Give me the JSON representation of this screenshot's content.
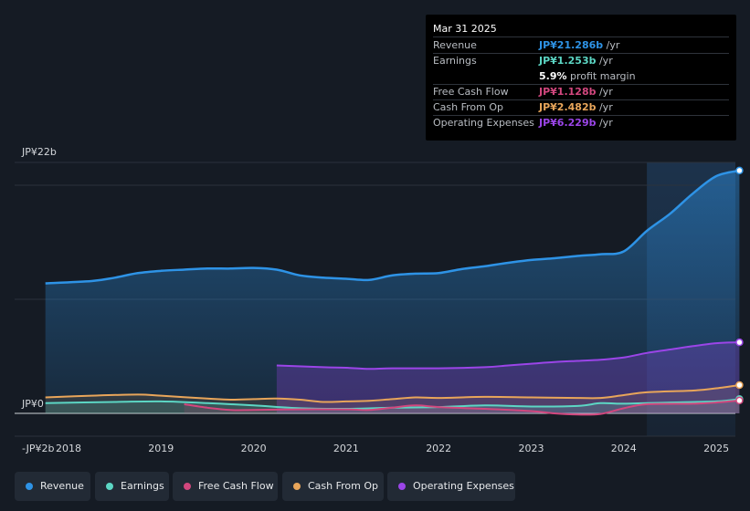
{
  "colors": {
    "revenue": "#2e93e6",
    "earnings": "#5cd6c4",
    "free_cash_flow": "#d2477e",
    "cash_from_op": "#e8a55a",
    "operating_expenses": "#9b45e8"
  },
  "tooltip": {
    "date": "Mar 31 2025",
    "rows": [
      {
        "label": "Revenue",
        "value": "JP¥21.286b",
        "unit": " /yr"
      },
      {
        "label": "Earnings",
        "value": "JP¥1.253b",
        "unit": " /yr"
      },
      {
        "label": "",
        "value": "5.9%",
        "unit": " profit margin"
      },
      {
        "label": "Free Cash Flow",
        "value": "JP¥1.128b",
        "unit": " /yr"
      },
      {
        "label": "Cash From Op",
        "value": "JP¥2.482b",
        "unit": " /yr"
      },
      {
        "label": "Operating Expenses",
        "value": "JP¥6.229b",
        "unit": " /yr"
      }
    ]
  },
  "legend": [
    {
      "label": "Revenue",
      "icon": "revenue-dot-icon"
    },
    {
      "label": "Earnings",
      "icon": "earnings-dot-icon"
    },
    {
      "label": "Free Cash Flow",
      "icon": "free-cash-flow-dot-icon"
    },
    {
      "label": "Cash From Op",
      "icon": "cash-from-op-dot-icon"
    },
    {
      "label": "Operating Expenses",
      "icon": "operating-expenses-dot-icon"
    }
  ],
  "chart_data": {
    "type": "area",
    "y_tick_labels": [
      {
        "label": "JP¥22b",
        "value": 22
      },
      {
        "label": "JP¥0",
        "value": 0
      },
      {
        "label": "-JP¥2b",
        "value": -2
      }
    ],
    "ylim": [
      -2,
      22
    ],
    "xlim": [
      2017.7,
      2025.25
    ],
    "x_ticks": [
      2018,
      2019,
      2020,
      2021,
      2022,
      2023,
      2024,
      2025
    ],
    "x_tick_labels": [
      "2018",
      "2019",
      "2020",
      "2021",
      "2022",
      "2023",
      "2024",
      "2025"
    ],
    "highlight_start": 2024.25,
    "series": [
      {
        "name": "Revenue",
        "color_key": "revenue",
        "points": [
          [
            2017.75,
            11.4
          ],
          [
            2018.25,
            11.6
          ],
          [
            2018.5,
            11.9
          ],
          [
            2018.75,
            12.3
          ],
          [
            2019.0,
            12.5
          ],
          [
            2019.25,
            12.6
          ],
          [
            2019.5,
            12.7
          ],
          [
            2019.75,
            12.7
          ],
          [
            2020.0,
            12.75
          ],
          [
            2020.25,
            12.6
          ],
          [
            2020.5,
            12.1
          ],
          [
            2020.75,
            11.9
          ],
          [
            2021.0,
            11.8
          ],
          [
            2021.25,
            11.7
          ],
          [
            2021.5,
            12.1
          ],
          [
            2021.75,
            12.25
          ],
          [
            2022.0,
            12.3
          ],
          [
            2022.25,
            12.65
          ],
          [
            2022.5,
            12.9
          ],
          [
            2022.75,
            13.2
          ],
          [
            2023.0,
            13.45
          ],
          [
            2023.25,
            13.6
          ],
          [
            2023.5,
            13.8
          ],
          [
            2023.75,
            13.95
          ],
          [
            2024.0,
            14.2
          ],
          [
            2024.25,
            16.0
          ],
          [
            2024.5,
            17.5
          ],
          [
            2024.75,
            19.3
          ],
          [
            2025.0,
            20.8
          ],
          [
            2025.25,
            21.286
          ]
        ]
      },
      {
        "name": "Earnings",
        "color_key": "earnings",
        "points": [
          [
            2017.75,
            0.9
          ],
          [
            2018.5,
            1.0
          ],
          [
            2019.0,
            1.05
          ],
          [
            2019.5,
            0.9
          ],
          [
            2020.0,
            0.7
          ],
          [
            2020.5,
            0.45
          ],
          [
            2021.0,
            0.4
          ],
          [
            2021.5,
            0.5
          ],
          [
            2022.0,
            0.55
          ],
          [
            2022.5,
            0.7
          ],
          [
            2023.0,
            0.6
          ],
          [
            2023.5,
            0.65
          ],
          [
            2023.75,
            0.9
          ],
          [
            2024.0,
            0.85
          ],
          [
            2024.5,
            0.95
          ],
          [
            2025.0,
            1.05
          ],
          [
            2025.25,
            1.253
          ]
        ]
      },
      {
        "name": "Free Cash Flow",
        "color_key": "free_cash_flow",
        "points": [
          [
            2019.25,
            0.8
          ],
          [
            2019.5,
            0.5
          ],
          [
            2019.75,
            0.3
          ],
          [
            2020.0,
            0.3
          ],
          [
            2020.5,
            0.35
          ],
          [
            2021.0,
            0.35
          ],
          [
            2021.25,
            0.3
          ],
          [
            2021.5,
            0.5
          ],
          [
            2021.75,
            0.7
          ],
          [
            2022.0,
            0.55
          ],
          [
            2022.5,
            0.4
          ],
          [
            2023.0,
            0.2
          ],
          [
            2023.25,
            0.0
          ],
          [
            2023.5,
            -0.1
          ],
          [
            2023.75,
            -0.05
          ],
          [
            2024.0,
            0.45
          ],
          [
            2024.25,
            0.8
          ],
          [
            2024.75,
            0.85
          ],
          [
            2025.0,
            0.95
          ],
          [
            2025.25,
            1.128
          ]
        ]
      },
      {
        "name": "Cash From Op",
        "color_key": "cash_from_op",
        "points": [
          [
            2017.75,
            1.4
          ],
          [
            2018.25,
            1.55
          ],
          [
            2018.75,
            1.65
          ],
          [
            2019.0,
            1.55
          ],
          [
            2019.5,
            1.3
          ],
          [
            2019.75,
            1.2
          ],
          [
            2020.0,
            1.25
          ],
          [
            2020.25,
            1.3
          ],
          [
            2020.5,
            1.2
          ],
          [
            2020.75,
            1.0
          ],
          [
            2021.0,
            1.05
          ],
          [
            2021.25,
            1.1
          ],
          [
            2021.5,
            1.25
          ],
          [
            2021.75,
            1.4
          ],
          [
            2022.0,
            1.35
          ],
          [
            2022.5,
            1.45
          ],
          [
            2023.0,
            1.4
          ],
          [
            2023.5,
            1.35
          ],
          [
            2023.75,
            1.35
          ],
          [
            2024.0,
            1.6
          ],
          [
            2024.25,
            1.85
          ],
          [
            2024.75,
            2.0
          ],
          [
            2025.0,
            2.2
          ],
          [
            2025.25,
            2.482
          ]
        ]
      },
      {
        "name": "Operating Expenses",
        "color_key": "operating_expenses",
        "points": [
          [
            2020.25,
            4.2
          ],
          [
            2020.75,
            4.05
          ],
          [
            2021.0,
            4.0
          ],
          [
            2021.25,
            3.9
          ],
          [
            2021.5,
            3.95
          ],
          [
            2022.0,
            3.95
          ],
          [
            2022.5,
            4.05
          ],
          [
            2022.75,
            4.2
          ],
          [
            2023.0,
            4.35
          ],
          [
            2023.25,
            4.5
          ],
          [
            2023.5,
            4.6
          ],
          [
            2023.75,
            4.7
          ],
          [
            2024.0,
            4.9
          ],
          [
            2024.25,
            5.3
          ],
          [
            2024.5,
            5.6
          ],
          [
            2024.75,
            5.9
          ],
          [
            2025.0,
            6.15
          ],
          [
            2025.25,
            6.229
          ]
        ]
      }
    ]
  }
}
